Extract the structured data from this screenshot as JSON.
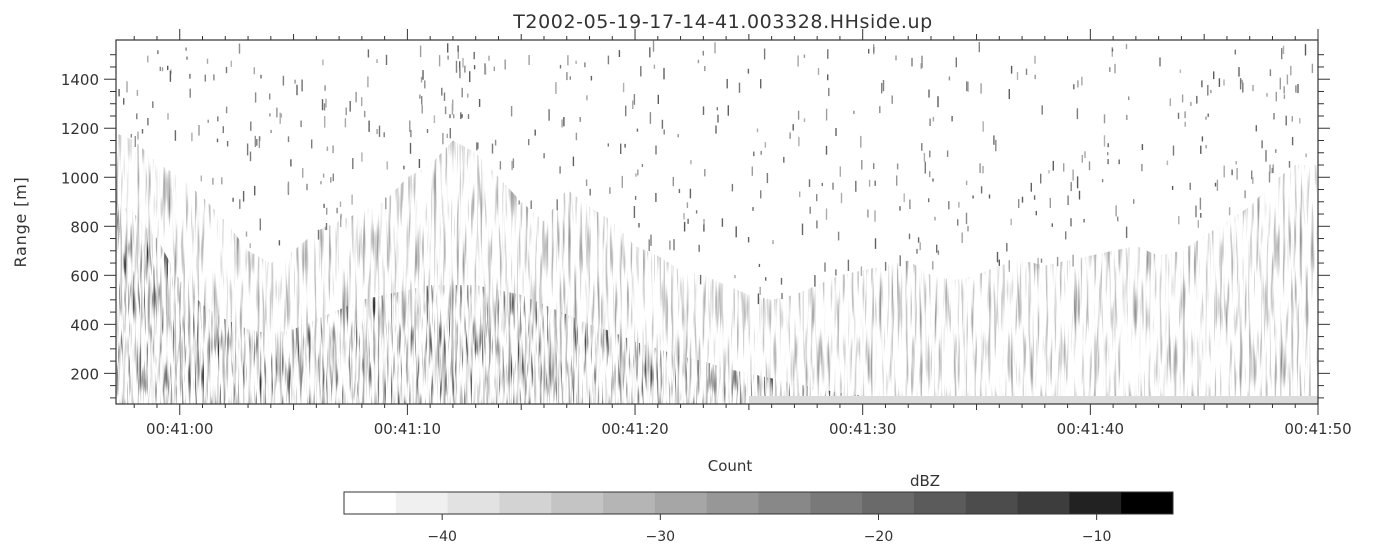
{
  "chart_data": {
    "type": "heatmap",
    "title": "T2002-05-19-17-14-41.003328.HHside.up",
    "xlabel": "Count",
    "ylabel": "Range [m]",
    "x_tick_labels": [
      "00:41:00",
      "00:41:10",
      "00:41:20",
      "00:41:30",
      "00:41:40",
      "00:41:50"
    ],
    "x_tick_seconds": [
      60,
      70,
      80,
      90,
      100,
      110
    ],
    "xlim_seconds": [
      57.2,
      110
    ],
    "y_ticks": [
      200,
      400,
      600,
      800,
      1000,
      1200,
      1400
    ],
    "ylim": [
      75,
      1560
    ],
    "colorbar": {
      "label": "dBZ",
      "range": [
        -44.5,
        -6.5
      ],
      "tick_values": [
        -40,
        -30,
        -20,
        -10
      ],
      "tick_labels": [
        "−40",
        "−30",
        "−20",
        "−10"
      ],
      "levels": 16,
      "colormap": "white-to-black grayscale"
    },
    "echo_top_profile": {
      "time_seconds": [
        57.2,
        58,
        59,
        60,
        61,
        62,
        63,
        64,
        65,
        66,
        67,
        68,
        69,
        70,
        71,
        72,
        73,
        74,
        75,
        76,
        77,
        78,
        79,
        80,
        81,
        82,
        83,
        84,
        85,
        86,
        87,
        88,
        89,
        90,
        91,
        92,
        93,
        94,
        95,
        96,
        97,
        98,
        99,
        100,
        101,
        102,
        103,
        104,
        105,
        106,
        107,
        108,
        109,
        110
      ],
      "top_m": [
        1180,
        1150,
        1060,
        1000,
        920,
        820,
        700,
        650,
        700,
        780,
        820,
        860,
        900,
        1000,
        1050,
        1150,
        1100,
        1000,
        900,
        820,
        950,
        880,
        820,
        720,
        680,
        620,
        600,
        560,
        520,
        500,
        520,
        560,
        600,
        620,
        640,
        660,
        600,
        580,
        600,
        640,
        660,
        640,
        660,
        680,
        700,
        720,
        680,
        700,
        760,
        820,
        880,
        980,
        1050,
        1050
      ],
      "strong_core_top_m": [
        900,
        850,
        750,
        580,
        480,
        420,
        380,
        360,
        380,
        420,
        460,
        500,
        520,
        540,
        560,
        560,
        560,
        540,
        520,
        480,
        440,
        400,
        370,
        330,
        300,
        270,
        250,
        220,
        200,
        180,
        160,
        140,
        120,
        110,
        100,
        100,
        100,
        100,
        100,
        100,
        100,
        100,
        100,
        100,
        100,
        100,
        100,
        100,
        100,
        100,
        100,
        100,
        100,
        100
      ]
    }
  },
  "colors": {
    "axis": "#333333",
    "colorbar_levels": [
      "#ffffff",
      "#f0f0f0",
      "#e2e2e2",
      "#d3d3d3",
      "#c4c4c4",
      "#b5b5b5",
      "#a6a6a6",
      "#979797",
      "#888888",
      "#797979",
      "#6a6a6a",
      "#5b5b5b",
      "#4c4c4c",
      "#3d3d3d",
      "#222222",
      "#000000"
    ]
  }
}
